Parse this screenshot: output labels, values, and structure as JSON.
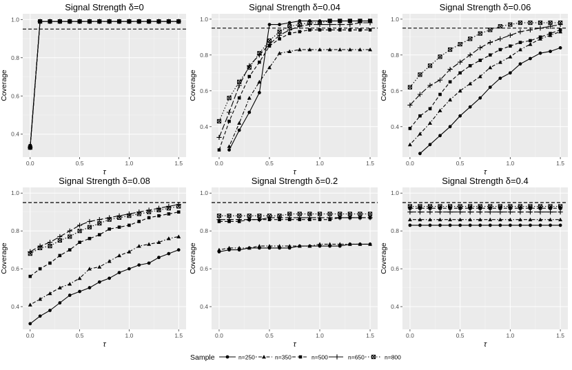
{
  "figure": {
    "colors": {
      "panel_bg": "#ebebeb",
      "grid_major": "#ffffff",
      "grid_minor": "#f5f5f5",
      "ink": "#000000",
      "axis_text": "#4d4d4d"
    },
    "legend": {
      "title": "Sample",
      "entries": [
        {
          "label": "n=250",
          "shape": "circle",
          "dash": "solid"
        },
        {
          "label": "n=350",
          "shape": "triangle",
          "dash": "dotdash"
        },
        {
          "label": "n=500",
          "shape": "square",
          "dash": "dashed"
        },
        {
          "label": "n=650",
          "shape": "plus",
          "dash": "longdash"
        },
        {
          "label": "n=800",
          "shape": "boxx",
          "dash": "dotted"
        }
      ]
    }
  },
  "chart_data": [
    {
      "type": "line",
      "title": "Signal Strength δ=0",
      "xlabel": "τ",
      "ylabel": "Coverage",
      "xlim": [
        -0.075,
        1.575
      ],
      "ylim": [
        0.28,
        1.03
      ],
      "xticks": [
        0,
        0.5,
        1,
        1.5
      ],
      "xtick_labels": [
        "0.0",
        "0.5",
        "1.0",
        "1.5"
      ],
      "yticks": [
        0.4,
        0.6,
        0.8,
        1.0
      ],
      "ytick_labels": [
        "0.4",
        "0.6",
        "0.8",
        "1.0"
      ],
      "hline": 0.95,
      "x": [
        0,
        0.1,
        0.2,
        0.3,
        0.4,
        0.5,
        0.6,
        0.7,
        0.8,
        0.9,
        1.0,
        1.1,
        1.2,
        1.3,
        1.4,
        1.5
      ],
      "series": [
        {
          "name": "n=250",
          "values": [
            0.33,
            0.99,
            0.99,
            0.99,
            0.99,
            0.99,
            0.99,
            0.99,
            0.99,
            0.99,
            0.99,
            0.99,
            0.99,
            0.99,
            0.99,
            0.99
          ]
        },
        {
          "name": "n=350",
          "values": [
            0.33,
            0.99,
            0.99,
            0.99,
            0.99,
            0.99,
            0.99,
            0.99,
            0.99,
            0.99,
            0.99,
            0.99,
            0.99,
            0.99,
            0.99,
            0.99
          ]
        },
        {
          "name": "n=500",
          "values": [
            0.34,
            0.99,
            0.99,
            0.99,
            0.99,
            0.99,
            0.99,
            0.99,
            0.99,
            0.99,
            0.99,
            0.99,
            0.99,
            0.99,
            0.99,
            0.99
          ]
        },
        {
          "name": "n=650",
          "values": [
            0.33,
            0.99,
            0.99,
            0.99,
            0.99,
            0.99,
            0.99,
            0.99,
            0.99,
            0.99,
            0.99,
            0.99,
            0.99,
            0.99,
            0.99,
            0.99
          ]
        },
        {
          "name": "n=800",
          "values": [
            0.33,
            0.99,
            0.99,
            0.99,
            0.99,
            0.99,
            0.99,
            0.99,
            0.99,
            0.99,
            0.99,
            0.99,
            0.99,
            0.99,
            0.99,
            0.99
          ]
        }
      ]
    },
    {
      "type": "line",
      "title": "Signal Strength δ=0.04",
      "xlabel": "τ",
      "ylabel": "Coverage",
      "xlim": [
        -0.075,
        1.575
      ],
      "ylim": [
        0.23,
        1.03
      ],
      "xticks": [
        0,
        0.5,
        1,
        1.5
      ],
      "xtick_labels": [
        "0.0",
        "0.5",
        "1.0",
        "1.5"
      ],
      "yticks": [
        0.4,
        0.6,
        0.8,
        1.0
      ],
      "ytick_labels": [
        "0.4",
        "0.6",
        "0.8",
        "1.0"
      ],
      "hline": 0.95,
      "x": [
        0,
        0.1,
        0.2,
        0.3,
        0.4,
        0.5,
        0.6,
        0.7,
        0.8,
        0.9,
        1.0,
        1.1,
        1.2,
        1.3,
        1.4,
        1.5
      ],
      "series": [
        {
          "name": "n=250",
          "values": [
            null,
            0.27,
            0.38,
            0.48,
            0.59,
            0.97,
            0.97,
            0.98,
            0.99,
            0.99,
            0.99,
            0.99,
            0.99,
            0.99,
            0.99,
            0.99
          ]
        },
        {
          "name": "n=350",
          "values": [
            null,
            0.29,
            0.42,
            0.56,
            0.65,
            0.73,
            0.81,
            0.82,
            0.83,
            0.83,
            0.83,
            0.83,
            0.83,
            0.83,
            0.83,
            0.83
          ]
        },
        {
          "name": "n=500",
          "values": [
            0.27,
            0.43,
            0.56,
            0.68,
            0.76,
            0.85,
            0.89,
            0.92,
            0.93,
            0.94,
            0.94,
            0.94,
            0.94,
            0.94,
            0.94,
            0.94
          ]
        },
        {
          "name": "n=650",
          "values": [
            0.34,
            0.48,
            0.63,
            0.74,
            0.8,
            0.86,
            0.91,
            0.94,
            0.96,
            0.97,
            0.97,
            0.97,
            0.97,
            0.97,
            0.98,
            0.98
          ]
        },
        {
          "name": "n=800",
          "values": [
            0.43,
            0.56,
            0.65,
            0.73,
            0.81,
            0.88,
            0.93,
            0.96,
            0.97,
            0.98,
            0.98,
            0.99,
            0.99,
            0.99,
            0.99,
            0.99
          ]
        }
      ]
    },
    {
      "type": "line",
      "title": "Signal Strength δ=0.06",
      "xlabel": "τ",
      "ylabel": "Coverage",
      "xlim": [
        -0.075,
        1.575
      ],
      "ylim": [
        0.23,
        1.03
      ],
      "xticks": [
        0,
        0.5,
        1,
        1.5
      ],
      "xtick_labels": [
        "0.0",
        "0.5",
        "1.0",
        "1.5"
      ],
      "yticks": [
        0.4,
        0.6,
        0.8,
        1.0
      ],
      "ytick_labels": [
        "0.4",
        "0.6",
        "0.8",
        "1.0"
      ],
      "hline": 0.95,
      "x": [
        0,
        0.1,
        0.2,
        0.3,
        0.4,
        0.5,
        0.6,
        0.7,
        0.8,
        0.9,
        1.0,
        1.1,
        1.2,
        1.3,
        1.4,
        1.5
      ],
      "series": [
        {
          "name": "n=250",
          "values": [
            null,
            0.25,
            0.3,
            0.35,
            0.4,
            0.46,
            0.51,
            0.56,
            0.62,
            0.67,
            0.7,
            0.75,
            0.78,
            0.81,
            0.82,
            0.84
          ]
        },
        {
          "name": "n=350",
          "values": [
            0.3,
            0.36,
            0.42,
            0.49,
            0.55,
            0.6,
            0.64,
            0.68,
            0.73,
            0.76,
            0.79,
            0.83,
            0.86,
            0.89,
            0.91,
            0.93
          ]
        },
        {
          "name": "n=500",
          "values": [
            0.39,
            0.46,
            0.5,
            0.58,
            0.65,
            0.7,
            0.74,
            0.77,
            0.8,
            0.83,
            0.85,
            0.87,
            0.88,
            0.9,
            0.92,
            0.94
          ]
        },
        {
          "name": "n=650",
          "values": [
            0.52,
            0.58,
            0.63,
            0.66,
            0.72,
            0.76,
            0.8,
            0.84,
            0.87,
            0.89,
            0.91,
            0.93,
            0.94,
            0.95,
            0.96,
            0.97
          ]
        },
        {
          "name": "n=800",
          "values": [
            0.62,
            0.69,
            0.74,
            0.79,
            0.83,
            0.86,
            0.89,
            0.92,
            0.94,
            0.96,
            0.97,
            0.98,
            0.98,
            0.98,
            0.98,
            0.98
          ]
        }
      ]
    },
    {
      "type": "line",
      "title": "Signal Strength δ=0.08",
      "xlabel": "τ",
      "ylabel": "Coverage",
      "xlim": [
        -0.075,
        1.575
      ],
      "ylim": [
        0.28,
        1.03
      ],
      "xticks": [
        0,
        0.5,
        1,
        1.5
      ],
      "xtick_labels": [
        "0.0",
        "0.5",
        "1.0",
        "1.5"
      ],
      "yticks": [
        0.4,
        0.6,
        0.8,
        1.0
      ],
      "ytick_labels": [
        "0.4",
        "0.6",
        "0.8",
        "1.0"
      ],
      "hline": 0.95,
      "x": [
        0,
        0.1,
        0.2,
        0.3,
        0.4,
        0.5,
        0.6,
        0.7,
        0.8,
        0.9,
        1.0,
        1.1,
        1.2,
        1.3,
        1.4,
        1.5
      ],
      "series": [
        {
          "name": "n=250",
          "values": [
            0.31,
            0.35,
            0.38,
            0.42,
            0.46,
            0.48,
            0.5,
            0.53,
            0.55,
            0.58,
            0.6,
            0.62,
            0.63,
            0.66,
            0.68,
            0.7
          ]
        },
        {
          "name": "n=350",
          "values": [
            0.41,
            0.44,
            0.47,
            0.5,
            0.52,
            0.55,
            0.6,
            0.61,
            0.64,
            0.67,
            0.69,
            0.72,
            0.73,
            0.74,
            0.76,
            0.77
          ]
        },
        {
          "name": "n=500",
          "values": [
            0.56,
            0.6,
            0.63,
            0.67,
            0.7,
            0.74,
            0.76,
            0.78,
            0.81,
            0.82,
            0.83,
            0.85,
            0.87,
            0.88,
            0.89,
            0.9
          ]
        },
        {
          "name": "n=650",
          "values": [
            0.69,
            0.72,
            0.74,
            0.77,
            0.8,
            0.83,
            0.85,
            0.86,
            0.87,
            0.88,
            0.89,
            0.9,
            0.91,
            0.92,
            0.93,
            0.94
          ]
        },
        {
          "name": "n=800",
          "values": [
            0.68,
            0.71,
            0.72,
            0.75,
            0.77,
            0.8,
            0.82,
            0.84,
            0.86,
            0.87,
            0.88,
            0.89,
            0.9,
            0.91,
            0.92,
            0.93
          ]
        }
      ]
    },
    {
      "type": "line",
      "title": "Signal Strength δ=0.2",
      "xlabel": "τ",
      "ylabel": "Coverage",
      "xlim": [
        -0.075,
        1.575
      ],
      "ylim": [
        0.28,
        1.03
      ],
      "xticks": [
        0,
        0.5,
        1,
        1.5
      ],
      "xtick_labels": [
        "0.0",
        "0.5",
        "1.0",
        "1.5"
      ],
      "yticks": [
        0.4,
        0.6,
        0.8,
        1.0
      ],
      "ytick_labels": [
        "0.4",
        "0.6",
        "0.8",
        "1.0"
      ],
      "hline": 0.95,
      "x": [
        0,
        0.1,
        0.2,
        0.3,
        0.4,
        0.5,
        0.6,
        0.7,
        0.8,
        0.9,
        1.0,
        1.1,
        1.2,
        1.3,
        1.4,
        1.5
      ],
      "series": [
        {
          "name": "n=250",
          "values": [
            0.69,
            0.7,
            0.7,
            0.71,
            0.71,
            0.71,
            0.71,
            0.71,
            0.72,
            0.72,
            0.72,
            0.72,
            0.72,
            0.73,
            0.73,
            0.73
          ]
        },
        {
          "name": "n=350",
          "values": [
            0.7,
            0.71,
            0.71,
            0.71,
            0.72,
            0.72,
            0.72,
            0.72,
            0.72,
            0.72,
            0.73,
            0.73,
            0.73,
            0.73,
            0.73,
            0.73
          ]
        },
        {
          "name": "n=500",
          "values": [
            0.85,
            0.85,
            0.85,
            0.86,
            0.86,
            0.86,
            0.86,
            0.86,
            0.86,
            0.86,
            0.86,
            0.86,
            0.87,
            0.87,
            0.87,
            0.87
          ]
        },
        {
          "name": "n=650",
          "values": [
            0.86,
            0.86,
            0.86,
            0.86,
            0.86,
            0.87,
            0.87,
            0.87,
            0.87,
            0.87,
            0.87,
            0.87,
            0.87,
            0.87,
            0.87,
            0.87
          ]
        },
        {
          "name": "n=800",
          "values": [
            0.88,
            0.88,
            0.88,
            0.88,
            0.88,
            0.88,
            0.88,
            0.89,
            0.89,
            0.89,
            0.89,
            0.89,
            0.89,
            0.89,
            0.89,
            0.89
          ]
        }
      ]
    },
    {
      "type": "line",
      "title": "Signal Strength δ=0.4",
      "xlabel": "τ",
      "ylabel": "Coverage",
      "xlim": [
        -0.075,
        1.575
      ],
      "ylim": [
        0.28,
        1.03
      ],
      "xticks": [
        0,
        0.5,
        1,
        1.5
      ],
      "xtick_labels": [
        "0.0",
        "0.5",
        "1.0",
        "1.5"
      ],
      "yticks": [
        0.4,
        0.6,
        0.8,
        1.0
      ],
      "ytick_labels": [
        "0.4",
        "0.6",
        "0.8",
        "1.0"
      ],
      "hline": 0.95,
      "x": [
        0,
        0.1,
        0.2,
        0.3,
        0.4,
        0.5,
        0.6,
        0.7,
        0.8,
        0.9,
        1.0,
        1.1,
        1.2,
        1.3,
        1.4,
        1.5
      ],
      "series": [
        {
          "name": "n=250",
          "values": [
            0.83,
            0.83,
            0.83,
            0.83,
            0.83,
            0.83,
            0.83,
            0.83,
            0.83,
            0.83,
            0.83,
            0.83,
            0.83,
            0.83,
            0.83,
            0.83
          ]
        },
        {
          "name": "n=350",
          "values": [
            0.86,
            0.86,
            0.86,
            0.86,
            0.86,
            0.86,
            0.86,
            0.86,
            0.86,
            0.86,
            0.86,
            0.86,
            0.86,
            0.86,
            0.86,
            0.86
          ]
        },
        {
          "name": "n=500",
          "values": [
            0.92,
            0.92,
            0.92,
            0.92,
            0.92,
            0.92,
            0.92,
            0.92,
            0.92,
            0.92,
            0.92,
            0.92,
            0.92,
            0.92,
            0.92,
            0.92
          ]
        },
        {
          "name": "n=650",
          "values": [
            0.9,
            0.9,
            0.9,
            0.9,
            0.9,
            0.9,
            0.9,
            0.9,
            0.9,
            0.9,
            0.9,
            0.9,
            0.9,
            0.9,
            0.9,
            0.9
          ]
        },
        {
          "name": "n=800",
          "values": [
            0.93,
            0.93,
            0.93,
            0.93,
            0.93,
            0.93,
            0.93,
            0.93,
            0.93,
            0.93,
            0.93,
            0.93,
            0.93,
            0.93,
            0.93,
            0.93
          ]
        }
      ]
    }
  ]
}
